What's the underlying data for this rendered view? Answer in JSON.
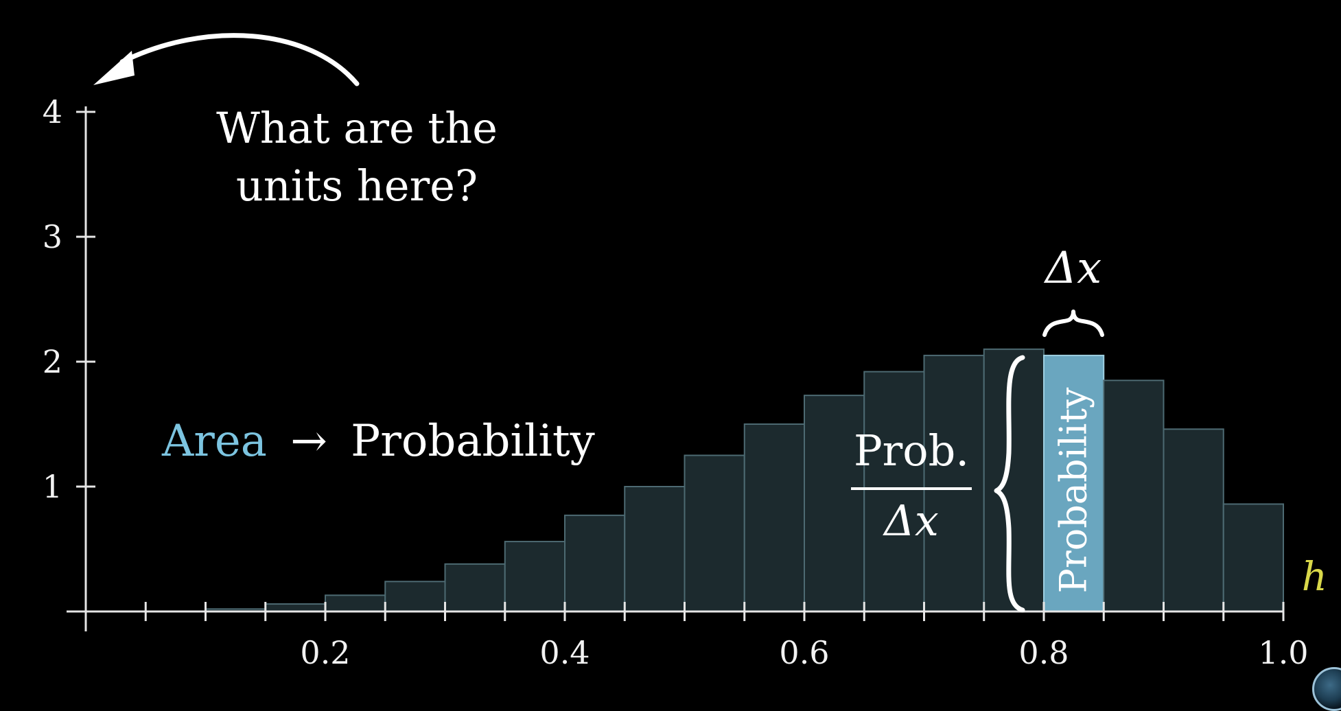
{
  "colors": {
    "background": "#000000",
    "bar_fill": "#1c2a2e",
    "bar_stroke": "#4d6a72",
    "highlight_fill": "#6aa6bf",
    "area_blue": "#7cc4e0",
    "axis": "#e6e6e6",
    "h_label": "#d9d84a"
  },
  "chart_data": {
    "type": "bar",
    "x_bin_edges": [
      0.0,
      0.05,
      0.1,
      0.15,
      0.2,
      0.25,
      0.3,
      0.35,
      0.4,
      0.45,
      0.5,
      0.55,
      0.6,
      0.65,
      0.7,
      0.75,
      0.8,
      0.85,
      0.9,
      0.95,
      1.0
    ],
    "values": [
      0.0,
      0.0,
      0.02,
      0.06,
      0.13,
      0.24,
      0.38,
      0.56,
      0.77,
      1.0,
      1.25,
      1.5,
      1.73,
      1.92,
      2.05,
      2.1,
      2.05,
      1.85,
      1.46,
      0.86
    ],
    "highlighted_bin_index": 16,
    "xlim": [
      0.0,
      1.0
    ],
    "ylim": [
      0,
      4
    ],
    "x_ticks": [
      "0.2",
      "0.4",
      "0.6",
      "0.8",
      "1.0"
    ],
    "x_tick_values": [
      0.2,
      0.4,
      0.6,
      0.8,
      1.0
    ],
    "y_ticks": [
      "1",
      "2",
      "3",
      "4"
    ],
    "y_tick_values": [
      1,
      2,
      3,
      4
    ],
    "xlabel": "h",
    "ylabel": "",
    "grid": false
  },
  "annotations": {
    "question_line1": "What are the",
    "question_line2": "units here?",
    "area_word": "Area",
    "arrow_symbol": "→",
    "probability_word": "Probability",
    "fraction_numerator": "Prob.",
    "fraction_denominator": "Δx",
    "delta_x": "Δx",
    "bar_label": "Probability"
  }
}
